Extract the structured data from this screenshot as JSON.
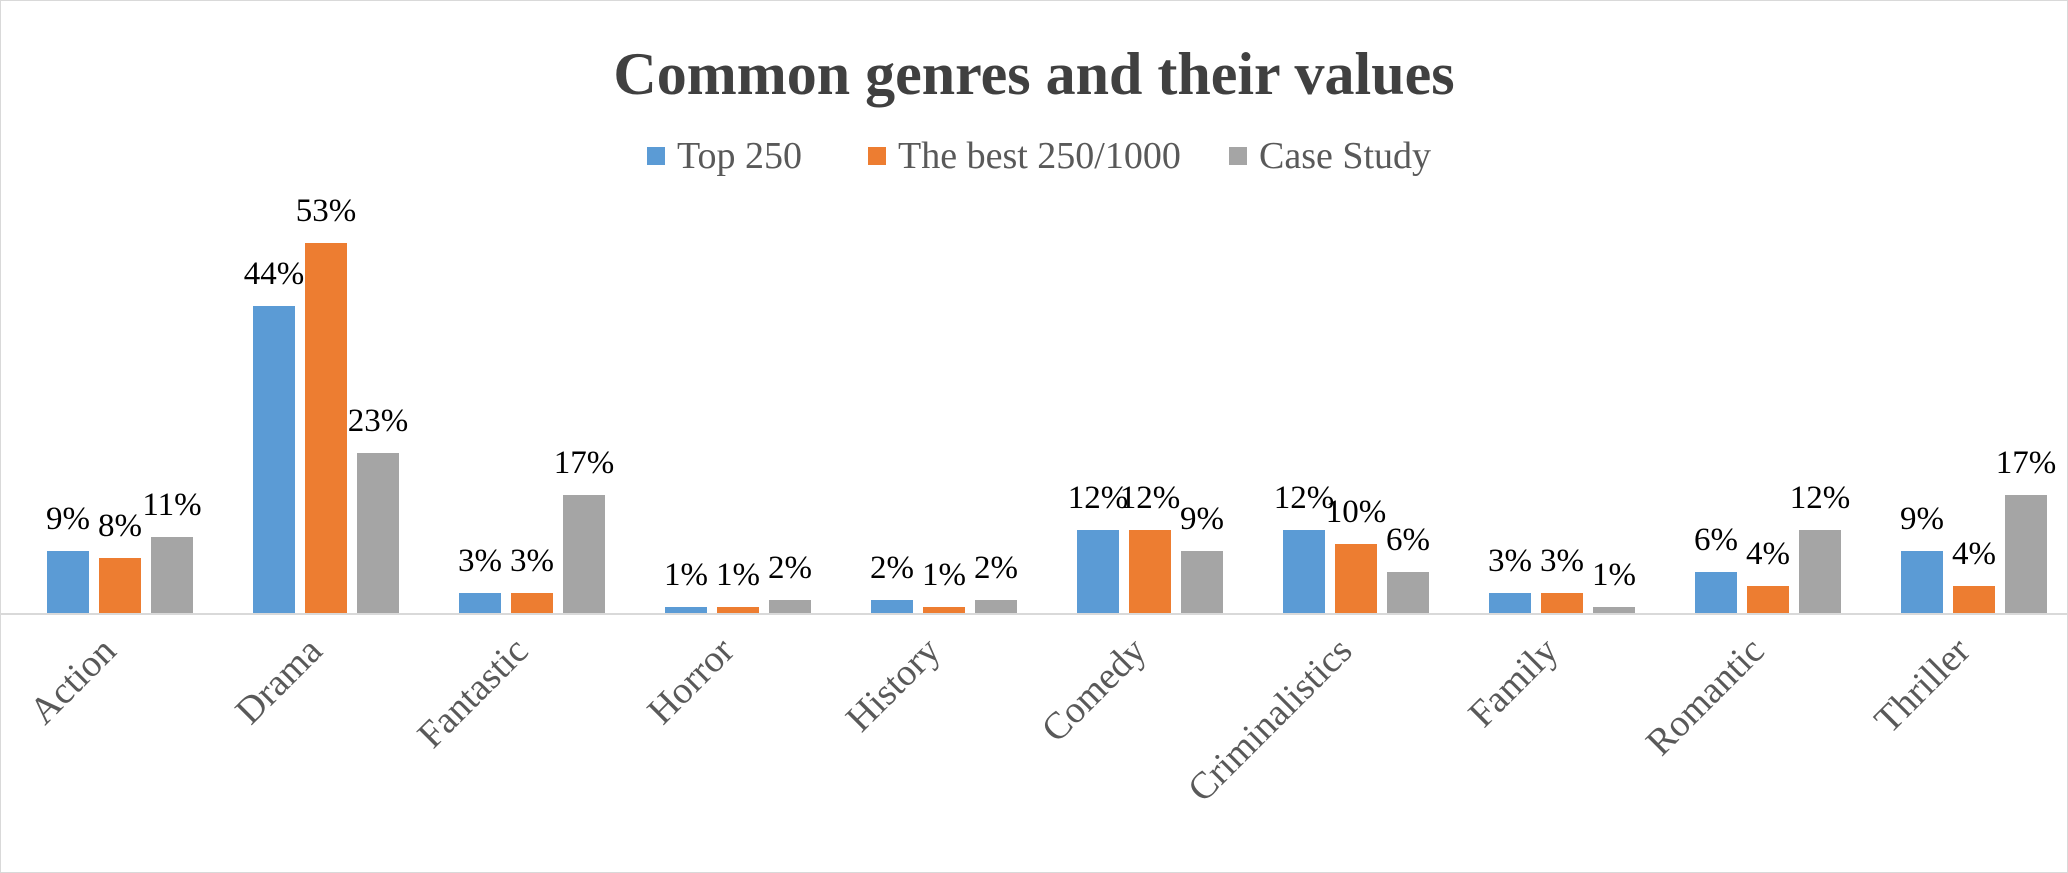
{
  "chart_data": {
    "type": "bar",
    "title": "Common genres and their values",
    "categories": [
      "Action",
      "Drama",
      "Fantastic",
      "Horror",
      "History",
      "Comedy",
      "Criminalistics",
      "Family",
      "Romantic",
      "Thriller"
    ],
    "series": [
      {
        "name": "Top 250",
        "color": "#5b9bd5",
        "values": [
          9,
          44,
          3,
          1,
          2,
          12,
          12,
          3,
          6,
          9
        ],
        "labels": [
          "9%",
          "44%",
          "3%",
          "1%",
          "2%",
          "12%",
          "12%",
          "3%",
          "6%",
          "9%"
        ]
      },
      {
        "name": "The best 250/1000",
        "color": "#ed7d31",
        "values": [
          8,
          53,
          3,
          1,
          1,
          12,
          10,
          3,
          4,
          4
        ],
        "labels": [
          "8%",
          "53%",
          "3%",
          "1%",
          "1%",
          "12%",
          "10%",
          "3%",
          "4%",
          "4%"
        ]
      },
      {
        "name": "Case Study",
        "color": "#a5a5a5",
        "values": [
          11,
          23,
          17,
          2,
          2,
          9,
          6,
          1,
          12,
          17
        ],
        "labels": [
          "11%",
          "23%",
          "17%",
          "2%",
          "2%",
          "9%",
          "6%",
          "1%",
          "12%",
          "17%"
        ]
      }
    ],
    "ylim": [
      0,
      53
    ],
    "legend_position": "top",
    "grid": false,
    "data_labels": true
  }
}
